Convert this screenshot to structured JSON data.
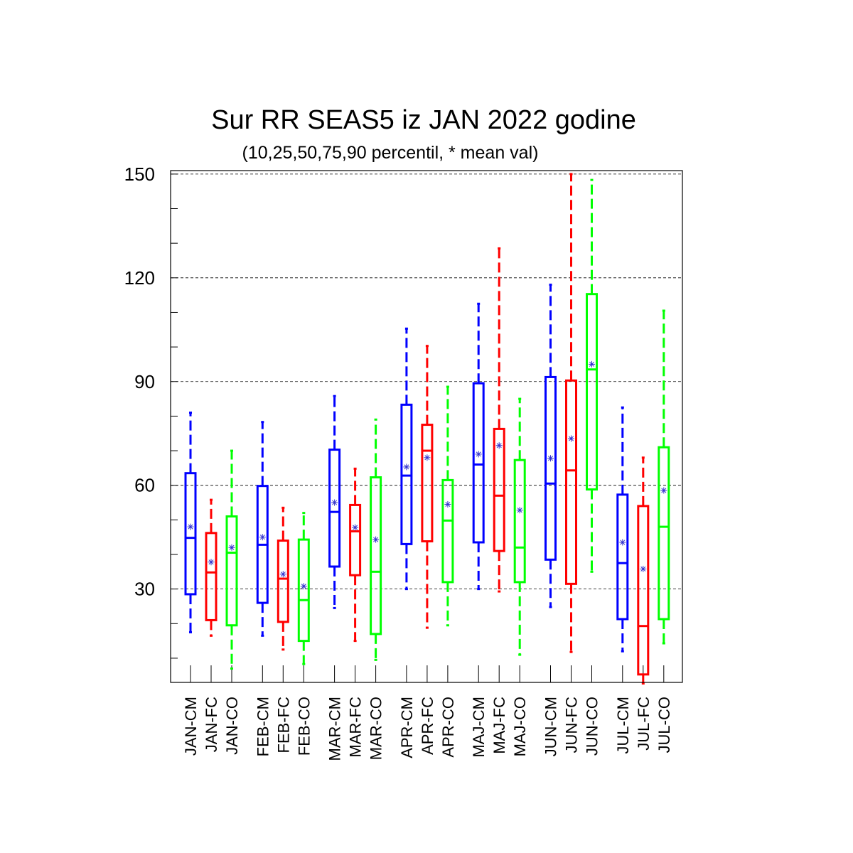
{
  "chart_data": {
    "type": "box",
    "title": "Sur RR SEAS5 iz JAN 2022 godine",
    "subtitle": "(10,25,50,75,90 percentil, * mean val)",
    "ylim": [
      3,
      151
    ],
    "yticks": [
      30,
      60,
      90,
      120,
      150
    ],
    "ytick_labels": [
      "30",
      "60",
      "90",
      "120",
      "150"
    ],
    "grid": "horizontal dashed at major ticks",
    "colors": {
      "CM": "#0000ff",
      "FC": "#ff0000",
      "CO": "#00ff00",
      "mean_marker": "#3333cc"
    },
    "boxes": [
      {
        "label": "JAN-CM",
        "kind": "CM",
        "p10": 17.5,
        "p25": 28.5,
        "p50": 44.8,
        "p75": 63.5,
        "p90": 81,
        "mean": 48
      },
      {
        "label": "JAN-FC",
        "kind": "FC",
        "p10": 16.5,
        "p25": 21,
        "p50": 34.8,
        "p75": 46.2,
        "p90": 55.8,
        "mean": 37.8
      },
      {
        "label": "JAN-CO",
        "kind": "CO",
        "p10": 7,
        "p25": 19.5,
        "p50": 40.5,
        "p75": 51,
        "p90": 70,
        "mean": 42
      },
      {
        "label": "FEB-CM",
        "kind": "CM",
        "p10": 16.5,
        "p25": 26,
        "p50": 42.8,
        "p75": 59.8,
        "p90": 78.3,
        "mean": 45
      },
      {
        "label": "FEB-FC",
        "kind": "FC",
        "p10": 12.5,
        "p25": 20.5,
        "p50": 33,
        "p75": 44,
        "p90": 53.5,
        "mean": 34.3
      },
      {
        "label": "FEB-CO",
        "kind": "CO",
        "p10": 8.3,
        "p25": 15,
        "p50": 26.8,
        "p75": 44.3,
        "p90": 52,
        "mean": 30.8
      },
      {
        "label": "MAR-CM",
        "kind": "CM",
        "p10": 24.5,
        "p25": 36.5,
        "p50": 52.3,
        "p75": 70.3,
        "p90": 85.8,
        "mean": 55
      },
      {
        "label": "MAR-FC",
        "kind": "FC",
        "p10": 15,
        "p25": 34,
        "p50": 46.7,
        "p75": 54.3,
        "p90": 64.8,
        "mean": 47.8
      },
      {
        "label": "MAR-CO",
        "kind": "CO",
        "p10": 9.5,
        "p25": 17,
        "p50": 35,
        "p75": 62.3,
        "p90": 79,
        "mean": 44.3
      },
      {
        "label": "APR-CM",
        "kind": "CM",
        "p10": 30,
        "p25": 43,
        "p50": 62.8,
        "p75": 83.3,
        "p90": 105.3,
        "mean": 65.3
      },
      {
        "label": "APR-FC",
        "kind": "FC",
        "p10": 18.8,
        "p25": 43.8,
        "p50": 70,
        "p75": 77.5,
        "p90": 100.3,
        "mean": 68
      },
      {
        "label": "APR-CO",
        "kind": "CO",
        "p10": 19.5,
        "p25": 32,
        "p50": 49.8,
        "p75": 61.5,
        "p90": 88.5,
        "mean": 54.5
      },
      {
        "label": "MAJ-CM",
        "kind": "CM",
        "p10": 30,
        "p25": 43.5,
        "p50": 66,
        "p75": 89.5,
        "p90": 112.5,
        "mean": 69
      },
      {
        "label": "MAJ-FC",
        "kind": "FC",
        "p10": 29.3,
        "p25": 41,
        "p50": 57,
        "p75": 76.3,
        "p90": 128.5,
        "mean": 71.5
      },
      {
        "label": "MAJ-CO",
        "kind": "CO",
        "p10": 11,
        "p25": 32,
        "p50": 42,
        "p75": 67.3,
        "p90": 85,
        "mean": 52.8
      },
      {
        "label": "JUN-CM",
        "kind": "CM",
        "p10": 24.8,
        "p25": 38.5,
        "p50": 60.5,
        "p75": 91.3,
        "p90": 118,
        "mean": 67.8
      },
      {
        "label": "JUN-FC",
        "kind": "FC",
        "p10": 11.8,
        "p25": 31.5,
        "p50": 64.3,
        "p75": 90.3,
        "p90": 150,
        "mean": 73.5
      },
      {
        "label": "JUN-CO",
        "kind": "CO",
        "p10": 35,
        "p25": 58.8,
        "p50": 93.5,
        "p75": 115.3,
        "p90": 148.3,
        "mean": 95
      },
      {
        "label": "JUL-CM",
        "kind": "CM",
        "p10": 12,
        "p25": 21.3,
        "p50": 37.5,
        "p75": 57.3,
        "p90": 82.5,
        "mean": 43.5
      },
      {
        "label": "JUL-FC",
        "kind": "FC",
        "p10": 2.7,
        "p25": 5.3,
        "p50": 19.3,
        "p75": 54,
        "p90": 68,
        "mean": 35.8
      },
      {
        "label": "JUL-CO",
        "kind": "CO",
        "p10": 14.3,
        "p25": 21.3,
        "p50": 48,
        "p75": 71,
        "p90": 110.5,
        "mean": 58.5
      }
    ]
  }
}
